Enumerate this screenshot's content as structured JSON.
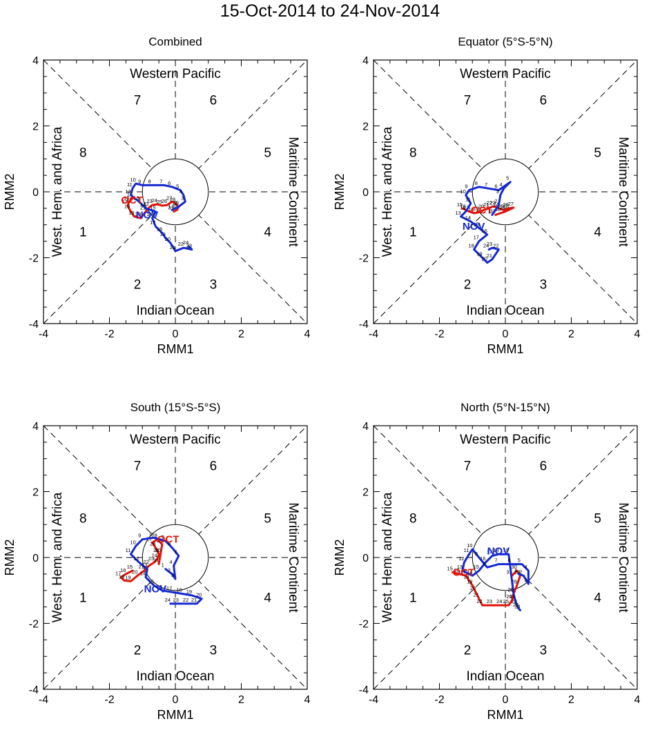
{
  "title": "15-Oct-2014 to 24-Nov-2014",
  "colors": {
    "oct": "#e0140a",
    "nov": "#1428d2",
    "axis": "#000000"
  },
  "chart_data": [
    {
      "type": "line",
      "title": "Combined",
      "xlabel": "RMM1",
      "ylabel": "RMM2",
      "xlim": [
        -4,
        4
      ],
      "ylim": [
        -4,
        4
      ],
      "ticks": [
        "-4",
        "-2",
        "0",
        "2",
        "4"
      ],
      "region_labels": {
        "top": "Western Pacific",
        "bottom": "Indian Ocean",
        "left": "West. Hem. and Africa",
        "right": "Maritime Continent"
      },
      "phase_labels": [
        "1",
        "2",
        "3",
        "4",
        "5",
        "6",
        "7",
        "8"
      ],
      "series": [
        {
          "name": "OCT",
          "color": "red",
          "day_labels": [
            "15",
            "16",
            "17",
            "18",
            "19",
            "20",
            "21",
            "22",
            "23",
            "24",
            "25",
            "26",
            "27",
            "28",
            "29",
            "30",
            "31"
          ],
          "points": [
            [
              -1.3,
              -0.2
            ],
            [
              -1.4,
              -0.3
            ],
            [
              -1.45,
              -0.42
            ],
            [
              -1.38,
              -0.55
            ],
            [
              -1.25,
              -0.75
            ],
            [
              -1.05,
              -0.8
            ],
            [
              -0.9,
              -0.6
            ],
            [
              -0.8,
              -0.48
            ],
            [
              -0.7,
              -0.4
            ],
            [
              -0.55,
              -0.38
            ],
            [
              -0.4,
              -0.42
            ],
            [
              -0.25,
              -0.4
            ],
            [
              -0.1,
              -0.3
            ],
            [
              0.0,
              -0.35
            ],
            [
              0.1,
              -0.45
            ],
            [
              0.05,
              -0.55
            ],
            [
              -0.05,
              -0.6
            ]
          ]
        },
        {
          "name": "NOV",
          "color": "blue",
          "day_labels": [
            "1",
            "2",
            "3",
            "4",
            "5",
            "6",
            "7",
            "8",
            "9",
            "10",
            "11",
            "12",
            "13",
            "14",
            "15",
            "16",
            "17",
            "18",
            "19",
            "20",
            "21",
            "22",
            "23",
            "24"
          ],
          "points": [
            [
              -0.1,
              -0.55
            ],
            [
              0.1,
              -0.45
            ],
            [
              0.3,
              -0.3
            ],
            [
              0.25,
              -0.1
            ],
            [
              0.15,
              0.05
            ],
            [
              -0.1,
              0.15
            ],
            [
              -0.35,
              0.2
            ],
            [
              -0.7,
              0.2
            ],
            [
              -1.0,
              0.2
            ],
            [
              -1.2,
              0.25
            ],
            [
              -1.3,
              0.1
            ],
            [
              -1.35,
              -0.1
            ],
            [
              -1.1,
              -0.3
            ],
            [
              -0.9,
              -0.5
            ],
            [
              -0.6,
              -0.6
            ],
            [
              -0.7,
              -0.8
            ],
            [
              -0.6,
              -1.05
            ],
            [
              -0.4,
              -1.25
            ],
            [
              -0.3,
              -1.4
            ],
            [
              -0.15,
              -1.55
            ],
            [
              0.0,
              -1.8
            ],
            [
              0.25,
              -1.7
            ],
            [
              0.5,
              -1.75
            ],
            [
              0.4,
              -1.65
            ]
          ]
        }
      ],
      "month_labels": [
        {
          "text": "OCT",
          "at": [
            -1.65,
            -0.25
          ]
        },
        {
          "text": "NOV",
          "at": [
            -1.2,
            -0.7
          ]
        }
      ]
    },
    {
      "type": "line",
      "title": "Equator (5°S-5°N)",
      "xlabel": "RMM1",
      "ylabel": "RMM2",
      "xlim": [
        -4,
        4
      ],
      "ylim": [
        -4,
        4
      ],
      "ticks": [
        "-4",
        "-2",
        "0",
        "2",
        "4"
      ],
      "region_labels": {
        "top": "Western Pacific",
        "bottom": "Indian Ocean",
        "left": "West. Hem. and Africa",
        "right": "Maritime Continent"
      },
      "phase_labels": [
        "1",
        "2",
        "3",
        "4",
        "5",
        "6",
        "7",
        "8"
      ],
      "series": [
        {
          "name": "OCT",
          "color": "red",
          "day_labels": [
            "15",
            "16",
            "17",
            "18",
            "19",
            "20",
            "21",
            "22",
            "23",
            "24",
            "25",
            "26",
            "27",
            "28",
            "29",
            "30",
            "31"
          ],
          "points": [
            [
              -1.3,
              -0.5
            ],
            [
              -1.2,
              -0.55
            ],
            [
              -1.1,
              -0.6
            ],
            [
              -0.95,
              -0.65
            ],
            [
              -0.8,
              -0.62
            ],
            [
              -0.65,
              -0.55
            ],
            [
              -0.5,
              -0.5
            ],
            [
              -0.4,
              -0.45
            ],
            [
              -0.3,
              -0.45
            ],
            [
              -0.2,
              -0.5
            ],
            [
              -0.05,
              -0.55
            ],
            [
              0.1,
              -0.5
            ],
            [
              0.25,
              -0.48
            ],
            [
              0.1,
              -0.55
            ],
            [
              0.0,
              -0.6
            ],
            [
              -0.15,
              -0.65
            ],
            [
              -0.3,
              -0.7
            ]
          ]
        },
        {
          "name": "NOV",
          "color": "blue",
          "day_labels": [
            "1",
            "2",
            "3",
            "4",
            "5",
            "6",
            "7",
            "8",
            "9",
            "10",
            "11",
            "12",
            "13",
            "14",
            "15",
            "16",
            "17",
            "18",
            "19",
            "20",
            "21",
            "22",
            "23",
            "24"
          ],
          "points": [
            [
              -0.4,
              -0.7
            ],
            [
              -0.2,
              -0.4
            ],
            [
              -0.15,
              -0.1
            ],
            [
              -0.05,
              0.1
            ],
            [
              0.15,
              0.3
            ],
            [
              -0.2,
              0.05
            ],
            [
              -0.5,
              0.1
            ],
            [
              -0.8,
              0.15
            ],
            [
              -1.1,
              0.05
            ],
            [
              -1.2,
              -0.1
            ],
            [
              -1.05,
              -0.35
            ],
            [
              -1.2,
              -0.6
            ],
            [
              -1.35,
              -0.75
            ],
            [
              -1.05,
              -0.9
            ],
            [
              -0.8,
              -1.1
            ],
            [
              -0.55,
              -1.3
            ],
            [
              -0.8,
              -1.5
            ],
            [
              -0.95,
              -1.75
            ],
            [
              -0.7,
              -2.0
            ],
            [
              -0.55,
              -2.15
            ],
            [
              -0.4,
              -2.05
            ],
            [
              -0.2,
              -1.75
            ],
            [
              -0.4,
              -1.7
            ],
            [
              -0.5,
              -1.75
            ]
          ]
        }
      ],
      "month_labels": [
        {
          "text": "OCT",
          "at": [
            -1.05,
            -0.55
          ]
        },
        {
          "text": "NOV",
          "at": [
            -1.3,
            -1.05
          ]
        }
      ]
    },
    {
      "type": "line",
      "title": "South (15°S-5°S)",
      "xlabel": "RMM1",
      "ylabel": "RMM2",
      "xlim": [
        -4,
        4
      ],
      "ylim": [
        -4,
        4
      ],
      "ticks": [
        "-4",
        "-2",
        "0",
        "2",
        "4"
      ],
      "region_labels": {
        "top": "Western Pacific",
        "bottom": "Indian Ocean",
        "left": "West. Hem. and Africa",
        "right": "Maritime Continent"
      },
      "phase_labels": [
        "1",
        "2",
        "3",
        "4",
        "5",
        "6",
        "7",
        "8"
      ],
      "series": [
        {
          "name": "OCT",
          "color": "red",
          "day_labels": [
            "15",
            "16",
            "17",
            "18",
            "19",
            "20",
            "21",
            "22",
            "23",
            "24",
            "25",
            "26",
            "27",
            "28",
            "29",
            "30",
            "31"
          ],
          "points": [
            [
              -1.3,
              -0.4
            ],
            [
              -1.5,
              -0.5
            ],
            [
              -1.65,
              -0.6
            ],
            [
              -1.55,
              -0.7
            ],
            [
              -1.35,
              -0.72
            ],
            [
              -1.15,
              -0.55
            ],
            [
              -0.95,
              -0.4
            ],
            [
              -0.8,
              -0.25
            ],
            [
              -0.65,
              -0.15
            ],
            [
              -0.55,
              -0.05
            ],
            [
              -0.5,
              0.1
            ],
            [
              -0.6,
              0.3
            ],
            [
              -0.7,
              0.45
            ],
            [
              -0.55,
              0.55
            ],
            [
              -0.4,
              0.4
            ],
            [
              -0.45,
              0.1
            ],
            [
              -0.5,
              -0.2
            ]
          ]
        },
        {
          "name": "NOV",
          "color": "blue",
          "day_labels": [
            "1",
            "2",
            "3",
            "4",
            "5",
            "6",
            "7",
            "8",
            "9",
            "10",
            "11",
            "12",
            "13",
            "14",
            "15",
            "16",
            "17",
            "18",
            "19",
            "20",
            "21",
            "22",
            "23",
            "24"
          ],
          "points": [
            [
              -0.3,
              -0.35
            ],
            [
              -0.1,
              -0.5
            ],
            [
              0.0,
              -0.65
            ],
            [
              -0.05,
              -0.25
            ],
            [
              0.1,
              0.05
            ],
            [
              -0.1,
              0.3
            ],
            [
              -0.3,
              0.5
            ],
            [
              -0.65,
              0.6
            ],
            [
              -1.0,
              0.55
            ],
            [
              -1.2,
              0.35
            ],
            [
              -1.35,
              0.1
            ],
            [
              -1.1,
              -0.15
            ],
            [
              -0.85,
              -0.35
            ],
            [
              -0.9,
              -0.6
            ],
            [
              -0.65,
              -0.85
            ],
            [
              -0.4,
              -1.0
            ],
            [
              -0.1,
              -1.05
            ],
            [
              0.2,
              -1.1
            ],
            [
              0.5,
              -1.15
            ],
            [
              0.8,
              -1.25
            ],
            [
              0.65,
              -1.4
            ],
            [
              0.4,
              -1.4
            ],
            [
              0.1,
              -1.4
            ],
            [
              -0.15,
              -1.4
            ]
          ]
        }
      ],
      "month_labels": [
        {
          "text": "OCT",
          "at": [
            -0.55,
            0.55
          ]
        },
        {
          "text": "NOV",
          "at": [
            -0.95,
            -0.95
          ]
        }
      ]
    },
    {
      "type": "line",
      "title": "North (5°N-15°N)",
      "xlabel": "RMM1",
      "ylabel": "RMM2",
      "xlim": [
        -4,
        4
      ],
      "ylim": [
        -4,
        4
      ],
      "ticks": [
        "-4",
        "-2",
        "0",
        "2",
        "4"
      ],
      "region_labels": {
        "top": "Western Pacific",
        "bottom": "Indian Ocean",
        "left": "West. Hem. and Africa",
        "right": "Maritime Continent"
      },
      "phase_labels": [
        "1",
        "2",
        "3",
        "4",
        "5",
        "6",
        "7",
        "8"
      ],
      "series": [
        {
          "name": "OCT",
          "color": "red",
          "day_labels": [
            "15",
            "16",
            "17",
            "18",
            "19",
            "20",
            "21",
            "22",
            "23",
            "24",
            "25",
            "26",
            "27",
            "28",
            "29",
            "30",
            "31"
          ],
          "points": [
            [
              -1.6,
              -0.45
            ],
            [
              -1.4,
              -0.5
            ],
            [
              -1.2,
              -0.55
            ],
            [
              -1.1,
              -0.7
            ],
            [
              -1.0,
              -0.85
            ],
            [
              -0.9,
              -1.05
            ],
            [
              -0.8,
              -1.25
            ],
            [
              -0.7,
              -1.45
            ],
            [
              -0.4,
              -1.45
            ],
            [
              -0.1,
              -1.45
            ],
            [
              0.1,
              -1.45
            ],
            [
              0.2,
              -1.3
            ],
            [
              0.25,
              -1.1
            ],
            [
              0.35,
              -0.85
            ],
            [
              0.45,
              -0.55
            ],
            [
              0.35,
              -0.4
            ],
            [
              0.2,
              -0.55
            ]
          ]
        },
        {
          "name": "NOV",
          "color": "blue",
          "day_labels": [
            "1",
            "2",
            "3",
            "4",
            "5",
            "6",
            "7",
            "8",
            "9",
            "10",
            "11",
            "12",
            "13",
            "14",
            "15",
            "16",
            "17",
            "18",
            "19",
            "20",
            "21",
            "22",
            "23",
            "24"
          ],
          "points": [
            [
              0.4,
              -0.5
            ],
            [
              0.55,
              -0.55
            ],
            [
              0.7,
              -0.8
            ],
            [
              0.7,
              -0.4
            ],
            [
              0.5,
              -0.2
            ],
            [
              0.2,
              -0.2
            ],
            [
              -0.2,
              -0.2
            ],
            [
              -0.55,
              -0.3
            ],
            [
              -0.8,
              0.0
            ],
            [
              -1.0,
              0.25
            ],
            [
              -1.1,
              0.1
            ],
            [
              -1.25,
              -0.15
            ],
            [
              -1.3,
              -0.4
            ],
            [
              -1.0,
              -0.55
            ],
            [
              -0.8,
              -0.4
            ],
            [
              -0.6,
              -0.15
            ],
            [
              -0.4,
              0.05
            ],
            [
              -0.2,
              0.1
            ],
            [
              0.1,
              0.1
            ],
            [
              0.25,
              -1.1
            ],
            [
              0.3,
              -1.3
            ],
            [
              0.35,
              -1.45
            ],
            [
              0.4,
              -1.55
            ],
            [
              0.45,
              -1.6
            ]
          ]
        }
      ],
      "month_labels": [
        {
          "text": "OCT",
          "at": [
            -1.6,
            -0.45
          ]
        },
        {
          "text": "NOV",
          "at": [
            -0.55,
            0.2
          ]
        }
      ]
    }
  ]
}
